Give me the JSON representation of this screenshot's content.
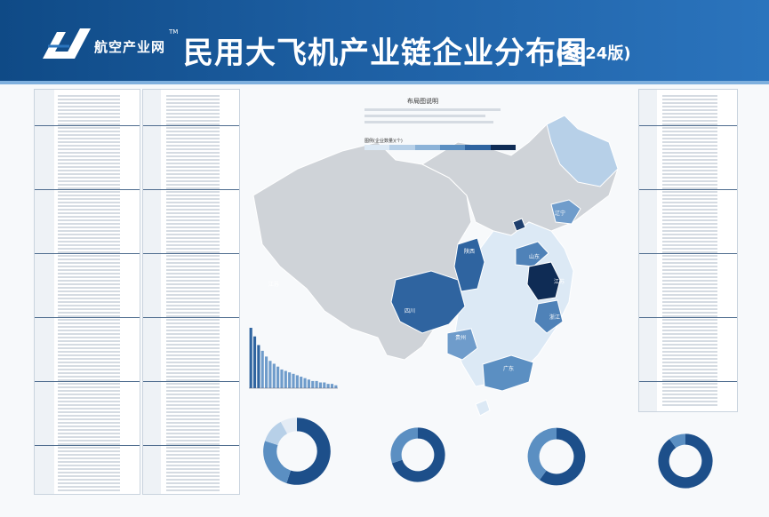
{
  "header": {
    "brand": "航空产业网",
    "brand_tm": "TM",
    "title": "民用大飞机产业链企业分布图",
    "year": "(2024版)"
  },
  "map": {
    "legend_title": "布局图说明",
    "legend_label": "图例(企业数量)(个)",
    "legend_colors": [
      "#dce9f5",
      "#b7d0e8",
      "#8cb3d8",
      "#5b8fc2",
      "#2f64a0",
      "#0f2c55"
    ],
    "provinces": [
      {
        "name": "江苏",
        "color": "#0f2c55"
      },
      {
        "name": "上海",
        "color": "#0f2c55"
      },
      {
        "name": "陕西",
        "color": "#2f64a0"
      },
      {
        "name": "四川",
        "color": "#2f64a0"
      },
      {
        "name": "山东",
        "color": "#4f82b8"
      },
      {
        "name": "浙江",
        "color": "#4f82b8"
      },
      {
        "name": "广东",
        "color": "#5b8fc2"
      },
      {
        "name": "辽宁",
        "color": "#6f9ccb"
      },
      {
        "name": "贵州",
        "color": "#6f9ccb"
      },
      {
        "name": "北京",
        "color": "#1f3f6d"
      },
      {
        "name": "天津",
        "color": "#1f3f6d"
      }
    ]
  },
  "charts": {
    "bar": {
      "values": [
        42,
        36,
        30,
        26,
        22,
        19,
        17,
        15,
        13,
        12,
        11,
        10,
        9,
        8,
        7,
        6,
        5,
        5,
        4,
        4,
        3,
        3,
        2
      ]
    },
    "donuts": [
      {
        "name": "donut-1",
        "segments": [
          0.55,
          0.25,
          0.12,
          0.08
        ]
      },
      {
        "name": "donut-2",
        "segments": [
          0.7,
          0.3
        ]
      },
      {
        "name": "donut-3",
        "segments": [
          0.6,
          0.4
        ]
      },
      {
        "name": "donut-4",
        "segments": [
          0.9,
          0.1
        ]
      }
    ]
  }
}
